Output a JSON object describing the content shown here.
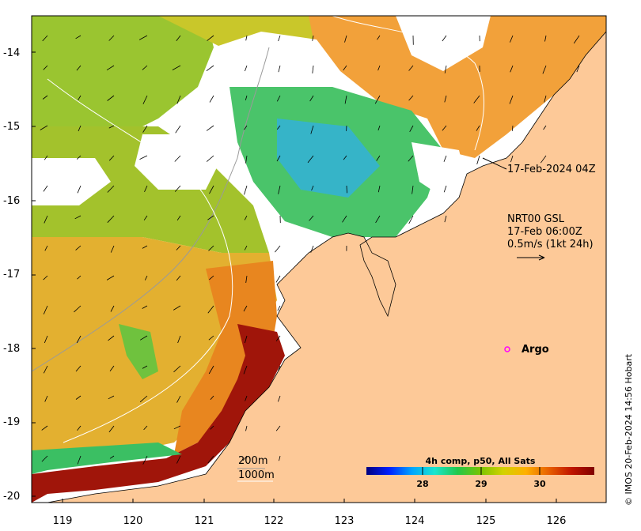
{
  "map": {
    "y_ticks": [
      "-14",
      "-15",
      "-16",
      "-17",
      "-18",
      "-19",
      "-20"
    ],
    "x_ticks": [
      "119",
      "120",
      "121",
      "122",
      "123",
      "124",
      "125",
      "126"
    ],
    "lat_range": [
      -20.1,
      -13.5
    ],
    "lon_range": [
      118.6,
      126.7
    ]
  },
  "annotations": {
    "pass_time": "17-Feb-2024 04Z",
    "current_source": "NRT00 GSL",
    "current_time": "17-Feb 06:00Z",
    "current_scale": "0.5m/s (1kt 24h)",
    "argo_label": "Argo",
    "isobath_200": "200m",
    "isobath_1000": "1000m"
  },
  "colorbar": {
    "title": "4h comp, p50, All Sats",
    "ticks": [
      "28",
      "29",
      "30"
    ],
    "colors": [
      "#00007f",
      "#0020ff",
      "#00a5ff",
      "#19e6ce",
      "#22c84b",
      "#7ac400",
      "#d2d200",
      "#ffb000",
      "#e86000",
      "#c01500",
      "#800000"
    ]
  },
  "credit": "© IMOS 20-Feb-2024 14:56 Hobart",
  "colors": {
    "land": "#fdc998",
    "frame": "#000000"
  }
}
